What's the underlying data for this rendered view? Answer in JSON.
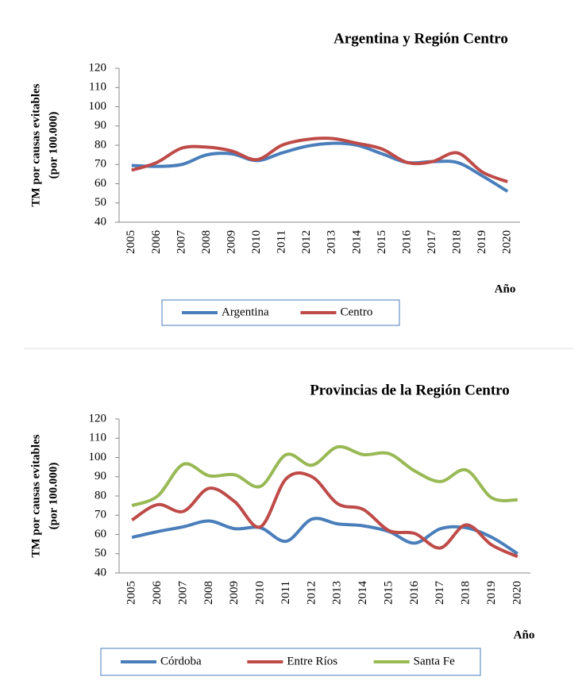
{
  "chart_data": [
    {
      "type": "line",
      "title": "Argentina y Región Centro",
      "ylabel": [
        "TM por causas evitables",
        "(por 100.000)"
      ],
      "xlabel": "Año",
      "categories": [
        "2005",
        "2006",
        "2007",
        "2008",
        "2009",
        "2010",
        "2011",
        "2012",
        "2013",
        "2014",
        "2015",
        "2016",
        "2017",
        "2018",
        "2019",
        "2020"
      ],
      "ylim": [
        40,
        120
      ],
      "yticks": [
        40,
        50,
        60,
        70,
        80,
        90,
        100,
        110,
        120
      ],
      "series": [
        {
          "name": "Argentina",
          "color": "#4a7ebb",
          "values": [
            69.5,
            69,
            70,
            75,
            75.5,
            72,
            76,
            79.5,
            81,
            80,
            75.5,
            71,
            71.5,
            71,
            64,
            56
          ]
        },
        {
          "name": "Centro",
          "color": "#be4b48",
          "values": [
            67,
            71,
            78.5,
            79,
            77,
            72.5,
            80,
            83,
            83.5,
            81,
            78,
            71,
            71.5,
            76,
            66,
            61
          ]
        }
      ]
    },
    {
      "type": "line",
      "title": "Provincias de la Región Centro",
      "ylabel": [
        "TM por causas evitables",
        "(por 100.000)"
      ],
      "xlabel": "Año",
      "categories": [
        "2005",
        "2006",
        "2007",
        "2008",
        "2009",
        "2010",
        "2011",
        "2012",
        "2013",
        "2014",
        "2015",
        "2016",
        "2017",
        "2018",
        "2019",
        "2020"
      ],
      "ylim": [
        40,
        120
      ],
      "yticks": [
        40,
        50,
        60,
        70,
        80,
        90,
        100,
        110,
        120
      ],
      "series": [
        {
          "name": "Córdoba",
          "color": "#4a7ebb",
          "values": [
            58.5,
            61.5,
            64,
            67,
            63,
            63.5,
            56.5,
            68,
            65.5,
            64.5,
            61.5,
            55.5,
            63,
            63.5,
            58.5,
            50
          ]
        },
        {
          "name": "Entre Ríos",
          "color": "#be4b48",
          "values": [
            67.5,
            75.5,
            72,
            84,
            77,
            64,
            89,
            90,
            76,
            73,
            62,
            60.5,
            53,
            65,
            54.5,
            48.5
          ]
        },
        {
          "name": "Santa Fe",
          "color": "#98b954",
          "values": [
            75,
            80,
            96.5,
            90.5,
            91,
            85,
            101.5,
            96,
            105.5,
            101.5,
            102,
            93,
            87.5,
            93.5,
            79,
            78
          ]
        }
      ]
    }
  ]
}
